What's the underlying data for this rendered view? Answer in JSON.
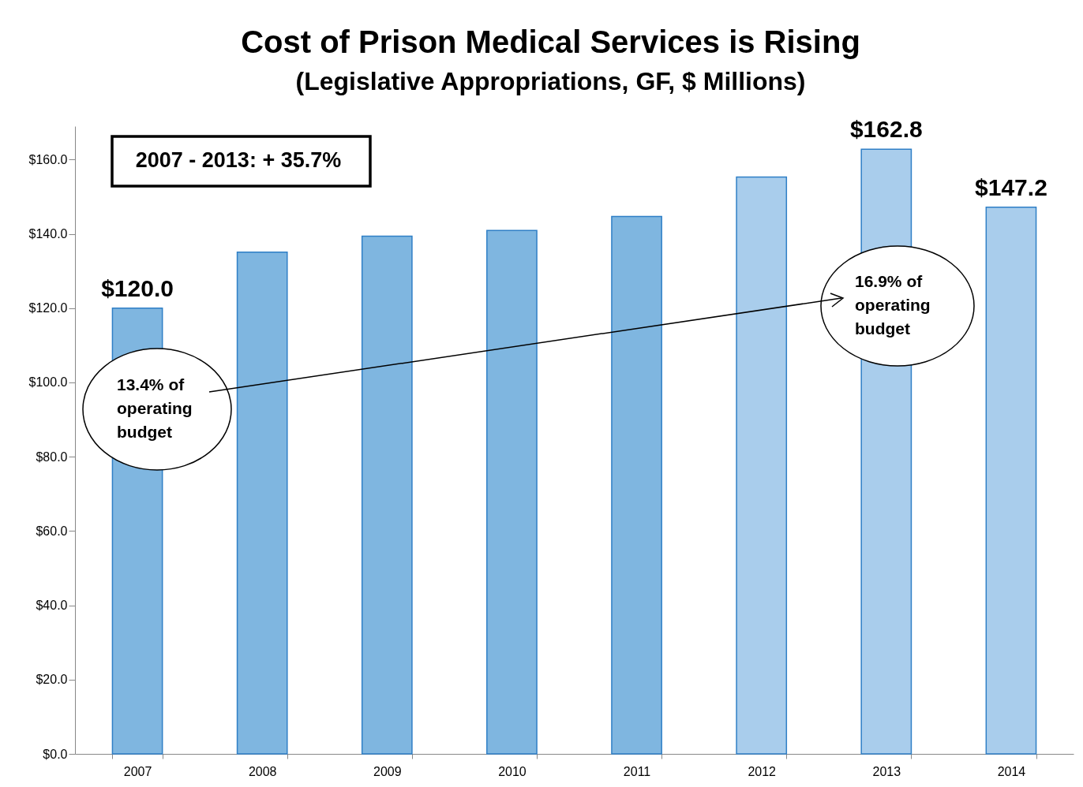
{
  "chart_data": {
    "type": "bar",
    "title": "Cost of Prison Medical Services is Rising",
    "subtitle": "(Legislative Appropriations, GF, $ Millions)",
    "categories": [
      "2007",
      "2008",
      "2009",
      "2010",
      "2011",
      "2012",
      "2013",
      "2014"
    ],
    "values": [
      120.0,
      135.1,
      139.4,
      140.9,
      144.7,
      155.3,
      162.8,
      147.2
    ],
    "colors": [
      "#7fb6e0",
      "#7fb6e0",
      "#7fb6e0",
      "#7fb6e0",
      "#7fb6e0",
      "#a9cdec",
      "#a9cdec",
      "#a9cdec"
    ],
    "value_labels": [
      "$120.0",
      null,
      null,
      null,
      null,
      null,
      "$162.8",
      "$147.2"
    ],
    "ylim": [
      0,
      169
    ],
    "yticks": [
      {
        "value": 0,
        "label": "$0.0"
      },
      {
        "value": 20,
        "label": "$20.0"
      },
      {
        "value": 40,
        "label": "$40.0"
      },
      {
        "value": 60,
        "label": "$60.0"
      },
      {
        "value": 80,
        "label": "$80.0"
      },
      {
        "value": 100,
        "label": "$100.0"
      },
      {
        "value": 120,
        "label": "$120.0"
      },
      {
        "value": 140,
        "label": "$140.0"
      },
      {
        "value": 160,
        "label": "$160.0"
      }
    ],
    "grid": false,
    "annotations": [
      "2007 - 2013: + 35.7%",
      "13.4% of operating budget",
      "16.9% of operating budget"
    ]
  }
}
